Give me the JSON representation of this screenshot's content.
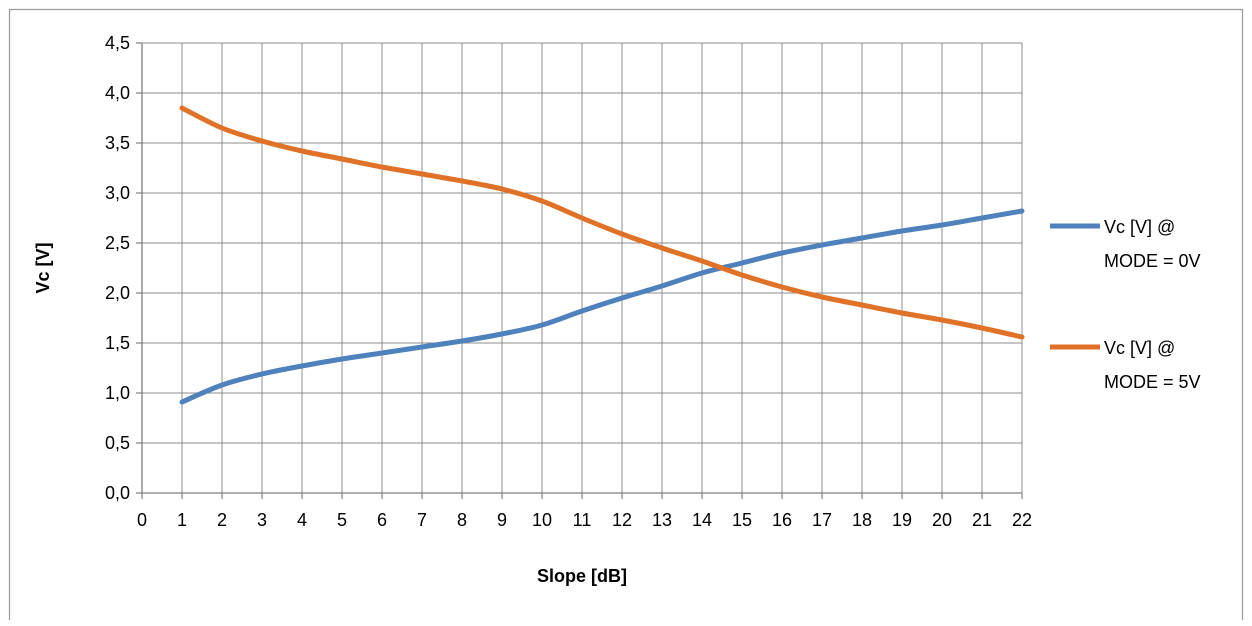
{
  "chart_data": {
    "type": "line",
    "title": "",
    "xlabel": "Slope [dB]",
    "ylabel": "Vc [V]",
    "xlim": [
      0,
      22
    ],
    "ylim": [
      0,
      4.5
    ],
    "grid": true,
    "legend_position": "right",
    "x_ticks": [
      "0",
      "1",
      "2",
      "3",
      "4",
      "5",
      "6",
      "7",
      "8",
      "9",
      "10",
      "11",
      "12",
      "13",
      "14",
      "15",
      "16",
      "17",
      "18",
      "19",
      "20",
      "21",
      "22"
    ],
    "y_ticks": [
      "0,0",
      "0,5",
      "1,0",
      "1,5",
      "2,0",
      "2,5",
      "3,0",
      "3,5",
      "4,0",
      "4,5"
    ],
    "x": [
      1,
      2,
      3,
      4,
      5,
      6,
      7,
      8,
      9,
      10,
      11,
      12,
      13,
      14,
      15,
      16,
      17,
      18,
      19,
      20,
      21,
      22
    ],
    "series": [
      {
        "name": "Vc [V] @ MODE = 0V",
        "legend_lines": [
          "Vc [V] @",
          "MODE = 0V"
        ],
        "color": "#4f81bd",
        "values": [
          0.91,
          1.08,
          1.19,
          1.27,
          1.34,
          1.4,
          1.46,
          1.52,
          1.59,
          1.68,
          1.82,
          1.95,
          2.07,
          2.2,
          2.3,
          2.4,
          2.48,
          2.55,
          2.62,
          2.68,
          2.75,
          2.82
        ]
      },
      {
        "name": "Vc [V] @ MODE = 5V",
        "legend_lines": [
          "Vc [V] @",
          "MODE = 5V"
        ],
        "color": "#e07227",
        "values": [
          3.85,
          3.65,
          3.52,
          3.42,
          3.34,
          3.26,
          3.19,
          3.12,
          3.04,
          2.92,
          2.75,
          2.59,
          2.45,
          2.32,
          2.18,
          2.06,
          1.96,
          1.88,
          1.8,
          1.73,
          1.65,
          1.56
        ]
      }
    ]
  }
}
